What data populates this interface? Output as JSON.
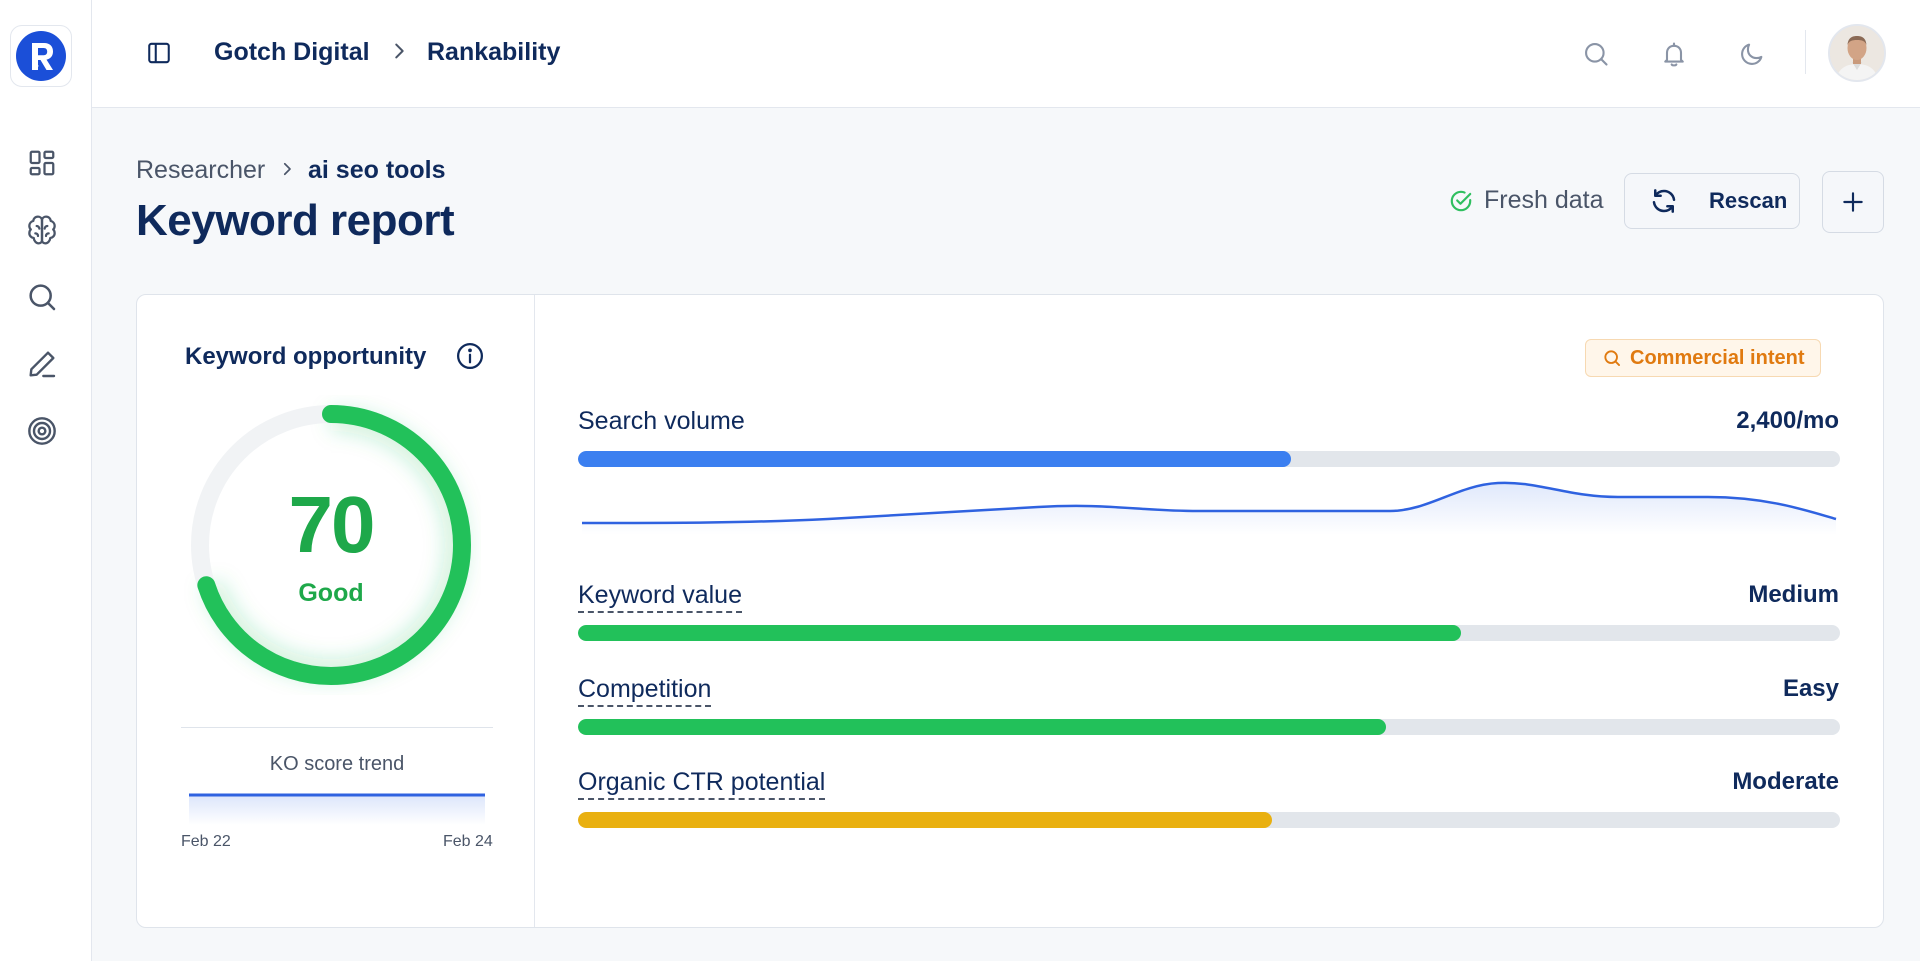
{
  "header": {
    "org": "Gotch Digital",
    "project": "Rankability"
  },
  "breadcrumb": {
    "parent": "Researcher",
    "current": "ai seo tools"
  },
  "page": {
    "title": "Keyword report",
    "fresh_label": "Fresh data",
    "rescan_label": "Rescan"
  },
  "sidebar": {
    "items": [
      "dashboard-icon",
      "brain-icon",
      "search-icon",
      "pen-icon",
      "target-icon"
    ]
  },
  "opportunity": {
    "title": "Keyword opportunity",
    "score": "70",
    "score_fraction": 0.7,
    "rating": "Good",
    "trend_title": "KO score trend",
    "trend_start": "Feb 22",
    "trend_end": "Feb 24"
  },
  "intent": {
    "label": "Commercial intent"
  },
  "metrics": {
    "search_volume": {
      "label": "Search volume",
      "value": "2,400/mo",
      "fraction": 0.565,
      "color": "#3b7ff0"
    },
    "keyword_value": {
      "label": "Keyword value",
      "value": "Medium",
      "fraction": 0.7,
      "color": "#22c15a"
    },
    "competition": {
      "label": "Competition",
      "value": "Easy",
      "fraction": 0.64,
      "color": "#22c15a"
    },
    "organic_ctr": {
      "label": "Organic CTR potential",
      "value": "Moderate",
      "fraction": 0.55,
      "color": "#e9b010"
    }
  },
  "colors": {
    "accent": "#0f2a5c",
    "good": "#1ea84a",
    "intent": "#e07a10"
  }
}
